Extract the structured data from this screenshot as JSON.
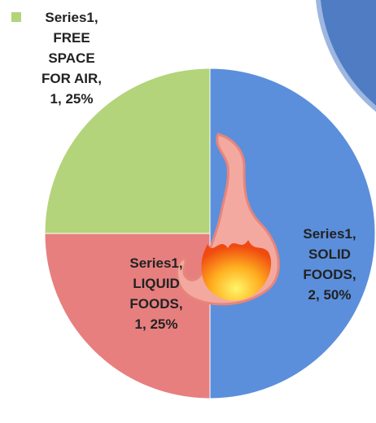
{
  "chart_data": {
    "type": "pie",
    "categories": [
      "SOLID FOODS",
      "LIQUID FOODS",
      "FREE SPACE FOR AIR"
    ],
    "series": [
      {
        "name": "Series1",
        "values": [
          2,
          1,
          1
        ],
        "value_labels": [
          "50%",
          "25%",
          "25%"
        ]
      }
    ],
    "colors": [
      "#5b8fdc",
      "#e77f7f",
      "#b3d47a"
    ],
    "label_separator": ", "
  }
}
